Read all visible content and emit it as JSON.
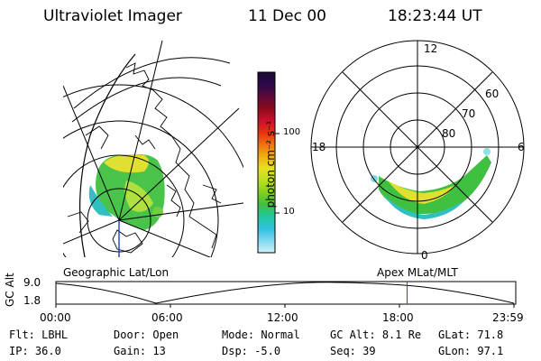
{
  "header": {
    "instrument": "Ultraviolet Imager",
    "date": "11 Dec 00",
    "time": "18:23:44 UT"
  },
  "colorbar": {
    "unit_label": "photon cm⁻² s⁻¹",
    "ticks": [
      "100",
      "10"
    ],
    "scale": "log",
    "colors": [
      "#1a0a33",
      "#2b0a4a",
      "#5a0a3a",
      "#8a0a1a",
      "#c8102e",
      "#e83010",
      "#f07010",
      "#f0b010",
      "#e8e020",
      "#b8e020",
      "#80d020",
      "#40c040",
      "#20c8a0",
      "#30c0e0",
      "#80d8f0",
      "#d0f0f8"
    ]
  },
  "polar_plot": {
    "mlt_labels": {
      "top": "12",
      "left": "18",
      "right": "6",
      "bottom": "0"
    },
    "mlat_labels": [
      "60",
      "70",
      "80"
    ]
  },
  "panel_labels": {
    "geo": "Geographic Lat/Lon",
    "apex": "Apex MLat/MLT"
  },
  "orbit_strip": {
    "ylabel": "GC Alt",
    "ymax": "9.0",
    "ymin": "1.8",
    "xticks": [
      "00:00",
      "06:00",
      "12:00",
      "18:00",
      "23:59"
    ],
    "current_time_marker_hours": 18.4,
    "marker_color": "#ff0000"
  },
  "info": {
    "row1": [
      {
        "key": "Flt:",
        "val": "LBHL"
      },
      {
        "key": "Door:",
        "val": "Open"
      },
      {
        "key": "Mode:",
        "val": "Normal"
      },
      {
        "key": "GC Alt:",
        "val": "8.1 Re"
      },
      {
        "key": "GLat:",
        "val": "71.8"
      }
    ],
    "row2": [
      {
        "key": "IP:",
        "val": "36.0"
      },
      {
        "key": "Gain:",
        "val": "13"
      },
      {
        "key": "Dsp:",
        "val": "-5.0"
      },
      {
        "key": "Seq:",
        "val": "39"
      },
      {
        "key": "GLon:",
        "val": "97.1"
      }
    ]
  }
}
